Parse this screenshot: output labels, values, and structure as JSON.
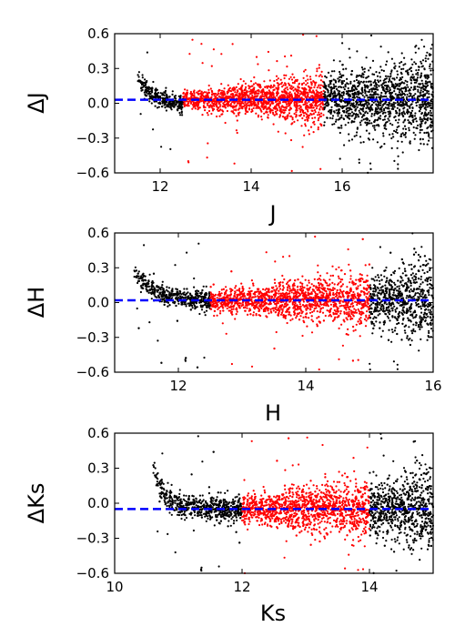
{
  "chart_data": [
    {
      "type": "scatter",
      "xlabel": "J",
      "ylabel": "ΔJ",
      "xlim": [
        11,
        18
      ],
      "ylim": [
        -0.6,
        0.6
      ],
      "xticks": [
        12,
        14,
        16
      ],
      "xtick_labels": [
        "12",
        "14",
        "16"
      ],
      "yticks": [
        -0.6,
        -0.3,
        0.0,
        0.3,
        0.6
      ],
      "ytick_labels": [
        "−0.6",
        "−0.3",
        "0.0",
        "0.3",
        "0.6"
      ],
      "offset_line": 0.03,
      "selected_range": [
        12.5,
        15.6
      ],
      "colors": {
        "all_stars": "#000000",
        "selected_stars": "#ff0000",
        "offset_line": "#0000ff"
      },
      "bright_trend": [
        [
          11.5,
          0.22
        ],
        [
          11.7,
          0.12
        ],
        [
          11.9,
          0.06
        ],
        [
          12.1,
          0.03
        ],
        [
          12.3,
          0.0
        ],
        [
          12.5,
          -0.02
        ]
      ],
      "scatter_model": [
        [
          12.5,
          0.04
        ],
        [
          14,
          0.07
        ],
        [
          15.5,
          0.1
        ],
        [
          17,
          0.16
        ],
        [
          18,
          0.2
        ]
      ],
      "grid": false
    },
    {
      "type": "scatter",
      "xlabel": "H",
      "ylabel": "ΔH",
      "xlim": [
        11,
        16
      ],
      "ylim": [
        -0.6,
        0.6
      ],
      "xticks": [
        12,
        14,
        16
      ],
      "xtick_labels": [
        "12",
        "14",
        "16"
      ],
      "yticks": [
        -0.6,
        -0.3,
        0.0,
        0.3,
        0.6
      ],
      "ytick_labels": [
        "−0.6",
        "−0.3",
        "0.0",
        "0.3",
        "0.6"
      ],
      "offset_line": 0.02,
      "selected_range": [
        12.5,
        15.0
      ],
      "colors": {
        "all_stars": "#000000",
        "selected_stars": "#ff0000",
        "offset_line": "#0000ff"
      },
      "bright_trend": [
        [
          11.3,
          0.25
        ],
        [
          11.5,
          0.15
        ],
        [
          11.7,
          0.08
        ],
        [
          11.9,
          0.05
        ],
        [
          12.2,
          0.03
        ],
        [
          12.5,
          0.02
        ]
      ],
      "scatter_model": [
        [
          12,
          0.04
        ],
        [
          13,
          0.06
        ],
        [
          14,
          0.08
        ],
        [
          15,
          0.12
        ],
        [
          16,
          0.18
        ]
      ],
      "grid": false
    },
    {
      "type": "scatter",
      "xlabel": "Ks",
      "ylabel": "ΔKs",
      "xlim": [
        10,
        15
      ],
      "ylim": [
        -0.6,
        0.6
      ],
      "xticks": [
        10,
        12,
        14
      ],
      "xtick_labels": [
        "10",
        "12",
        "14"
      ],
      "yticks": [
        -0.6,
        -0.3,
        0.0,
        0.3,
        0.6
      ],
      "ytick_labels": [
        "−0.6",
        "−0.3",
        "0.0",
        "0.3",
        "0.6"
      ],
      "offset_line": -0.05,
      "selected_range": [
        12.0,
        14.0
      ],
      "colors": {
        "all_stars": "#000000",
        "selected_stars": "#ff0000",
        "offset_line": "#0000ff"
      },
      "bright_trend": [
        [
          10.6,
          0.3
        ],
        [
          10.7,
          0.15
        ],
        [
          10.8,
          0.05
        ],
        [
          11.0,
          -0.02
        ],
        [
          11.4,
          -0.04
        ],
        [
          12.0,
          -0.05
        ]
      ],
      "scatter_model": [
        [
          11,
          0.05
        ],
        [
          12,
          0.06
        ],
        [
          13,
          0.09
        ],
        [
          14,
          0.12
        ],
        [
          15,
          0.18
        ]
      ],
      "grid": false
    }
  ]
}
